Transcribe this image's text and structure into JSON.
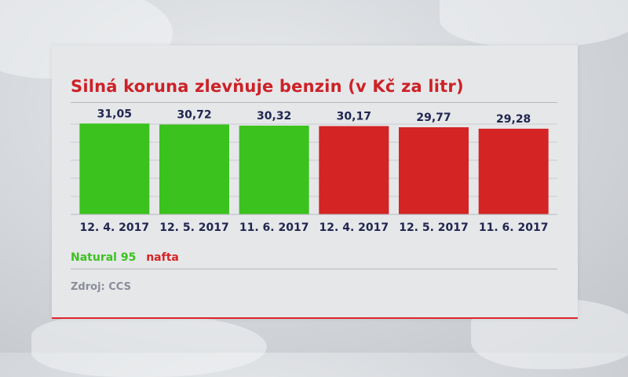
{
  "chart_data": {
    "type": "bar",
    "title": "Silná koruna zlevňuje benzin (v Kč za litr)",
    "categories": [
      "12. 4. 2017",
      "12. 5. 2017",
      "11. 6. 2017",
      "12. 4. 2017",
      "12. 5. 2017",
      "11. 6. 2017"
    ],
    "values": [
      31.05,
      30.72,
      30.32,
      30.17,
      29.77,
      29.28
    ],
    "value_labels": [
      "31,05",
      "30,72",
      "30,32",
      "30,17",
      "29,77",
      "29,28"
    ],
    "series": [
      {
        "name": "Natural 95",
        "color": "#3bc21e",
        "bars": [
          0,
          1,
          2
        ]
      },
      {
        "name": "nafta",
        "color": "#d42424",
        "bars": [
          3,
          4,
          5
        ]
      }
    ],
    "ylim": [
      0,
      33
    ],
    "grid": true,
    "legend_position": "bottom-left"
  },
  "source": "Zdroj: CCS",
  "colors": {
    "title": "#cc2127",
    "labels": "#20264f",
    "accent_line": "#e0242a",
    "divider": "#b5b8be"
  }
}
